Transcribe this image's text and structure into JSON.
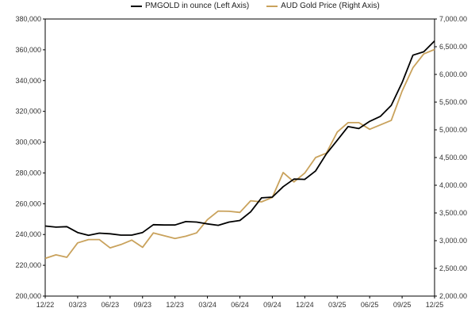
{
  "chart_data": {
    "type": "line",
    "x_ticks": [
      "12/22",
      "03/23",
      "06/23",
      "09/23",
      "12/23",
      "03/24",
      "06/24",
      "09/24",
      "12/24",
      "03/25",
      "06/25",
      "09/25",
      "12/25"
    ],
    "left_axis": {
      "ylim": [
        200000,
        380000
      ],
      "ticks": [
        "200,000",
        "220,000",
        "240,000",
        "260,000",
        "280,000",
        "300,000",
        "320,000",
        "340,000",
        "360,000",
        "380,000"
      ],
      "tick_values": [
        200000,
        220000,
        240000,
        260000,
        280000,
        300000,
        320000,
        340000,
        360000,
        380000
      ]
    },
    "right_axis": {
      "ylim": [
        2000,
        7000
      ],
      "ticks": [
        "2,000.00",
        "2,500.00",
        "3,000.00",
        "3,500.00",
        "4,000.00",
        "4,500.00",
        "5,000.00",
        "5,500.00",
        "6,000.00",
        "6,500.00",
        "7,000.00"
      ],
      "tick_values": [
        2000,
        2500,
        3000,
        3500,
        4000,
        4500,
        5000,
        5500,
        6000,
        6500,
        7000
      ]
    },
    "series": [
      {
        "name": "PMGOLD in ounce (Left Axis)",
        "axis": "left",
        "color": "#000000",
        "points": [
          [
            0,
            245500
          ],
          [
            1,
            244800
          ],
          [
            2,
            245100
          ],
          [
            3,
            241300
          ],
          [
            4,
            239500
          ],
          [
            5,
            240900
          ],
          [
            6,
            240500
          ],
          [
            7,
            239600
          ],
          [
            8,
            239600
          ],
          [
            9,
            241300
          ],
          [
            10,
            246400
          ],
          [
            11,
            246200
          ],
          [
            12,
            246200
          ],
          [
            13,
            248400
          ],
          [
            14,
            248100
          ],
          [
            15,
            246900
          ],
          [
            16,
            246000
          ],
          [
            17,
            248100
          ],
          [
            18,
            249100
          ],
          [
            19,
            254700
          ],
          [
            20,
            263800
          ],
          [
            21,
            264300
          ],
          [
            22,
            271100
          ],
          [
            23,
            276000
          ],
          [
            24,
            275800
          ],
          [
            25,
            281300
          ],
          [
            26,
            292400
          ],
          [
            27,
            301200
          ],
          [
            28,
            310100
          ],
          [
            29,
            308800
          ],
          [
            30,
            313500
          ],
          [
            31,
            316800
          ],
          [
            32,
            323900
          ],
          [
            33,
            338700
          ],
          [
            34,
            356500
          ],
          [
            35,
            358700
          ],
          [
            36,
            365700
          ]
        ]
      },
      {
        "name": "AUD Gold Price (Right Axis)",
        "axis": "right",
        "color": "#C9A25C",
        "points": [
          [
            0,
            2680
          ],
          [
            1,
            2745
          ],
          [
            2,
            2700
          ],
          [
            3,
            2960
          ],
          [
            4,
            3020
          ],
          [
            5,
            3020
          ],
          [
            6,
            2870
          ],
          [
            7,
            2930
          ],
          [
            8,
            3010
          ],
          [
            9,
            2880
          ],
          [
            10,
            3140
          ],
          [
            11,
            3090
          ],
          [
            12,
            3040
          ],
          [
            13,
            3080
          ],
          [
            14,
            3140
          ],
          [
            15,
            3380
          ],
          [
            16,
            3535
          ],
          [
            17,
            3530
          ],
          [
            18,
            3510
          ],
          [
            19,
            3720
          ],
          [
            20,
            3700
          ],
          [
            21,
            3780
          ],
          [
            22,
            4230
          ],
          [
            23,
            4060
          ],
          [
            24,
            4220
          ],
          [
            25,
            4500
          ],
          [
            26,
            4580
          ],
          [
            27,
            4960
          ],
          [
            28,
            5130
          ],
          [
            29,
            5130
          ],
          [
            30,
            5010
          ],
          [
            31,
            5090
          ],
          [
            32,
            5170
          ],
          [
            33,
            5700
          ],
          [
            34,
            6120
          ],
          [
            35,
            6370
          ],
          [
            36,
            6450
          ]
        ]
      }
    ],
    "grid": false,
    "legend_position": "top"
  }
}
